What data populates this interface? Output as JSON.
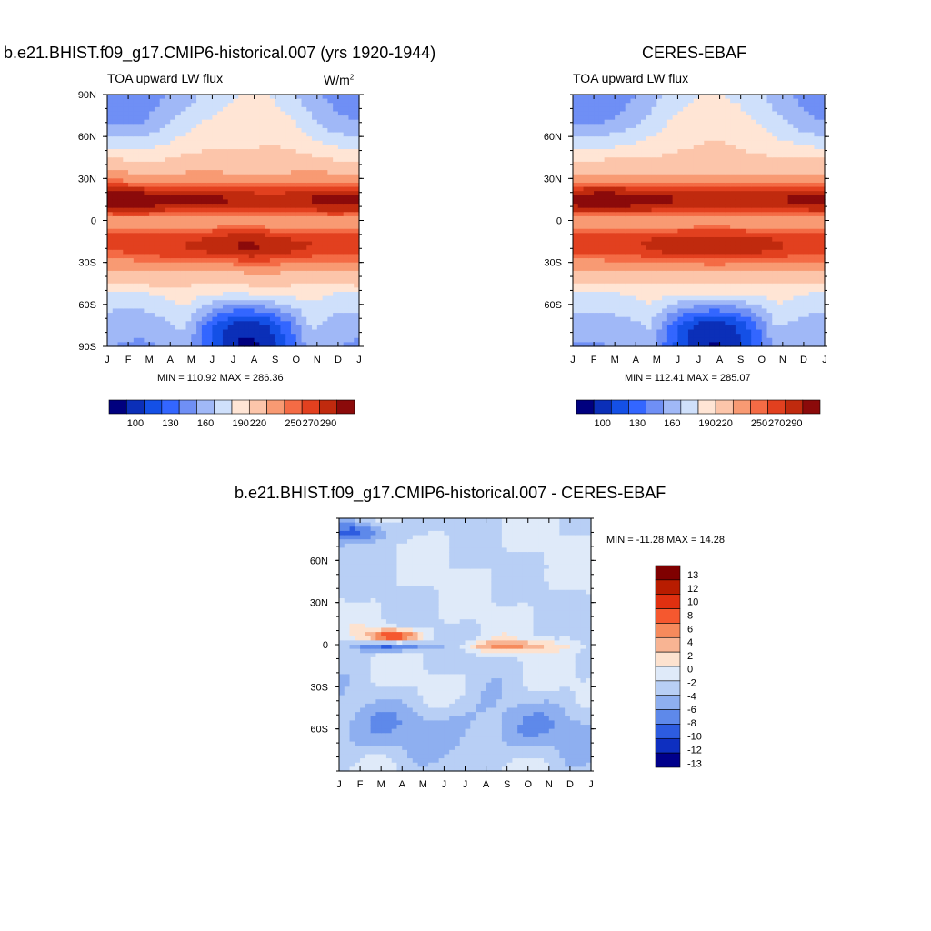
{
  "plots": {
    "left": {
      "title": "b.e21.BHIST.f09_g17.CMIP6-historical.007 (yrs 1920-1944)",
      "subtitle": "TOA upward LW flux",
      "units_base": "W/m",
      "units_exp": "2",
      "minmax": "MIN = 110.92 MAX = 286.36"
    },
    "right": {
      "title": "CERES-EBAF",
      "subtitle": "TOA upward LW flux",
      "minmax": "MIN = 112.41 MAX = 285.07"
    },
    "diff": {
      "title": "b.e21.BHIST.f09_g17.CMIP6-historical.007 - CERES-EBAF",
      "minmax": "MIN = -11.28 MAX =  14.28"
    }
  },
  "chart_data": [
    {
      "type": "heatmap",
      "title": "b.e21.BHIST.f09_g17.CMIP6-historical.007 (yrs 1920-1944)",
      "x_ticks": [
        "J",
        "F",
        "M",
        "A",
        "M",
        "J",
        "J",
        "A",
        "S",
        "O",
        "N",
        "D",
        "J"
      ],
      "y_ticks": [
        "90N",
        "60N",
        "30N",
        "0",
        "30S",
        "60S",
        "90S"
      ],
      "ylim": [
        -90,
        90
      ],
      "colorbar_labels": [
        "100",
        "130",
        "160",
        "190",
        "220",
        "250",
        "270",
        "290"
      ],
      "min": 110.92,
      "max": 286.36
    },
    {
      "type": "heatmap",
      "title": "CERES-EBAF",
      "x_ticks": [
        "J",
        "F",
        "M",
        "A",
        "M",
        "J",
        "J",
        "A",
        "S",
        "O",
        "N",
        "D",
        "J"
      ],
      "y_ticks": [
        "60N",
        "30N",
        "0",
        "30S",
        "60S"
      ],
      "ylim": [
        -90,
        90
      ],
      "colorbar_labels": [
        "100",
        "130",
        "160",
        "190",
        "220",
        "250",
        "270",
        "290"
      ],
      "min": 112.41,
      "max": 285.07
    },
    {
      "type": "heatmap",
      "title": "b.e21.BHIST.f09_g17.CMIP6-historical.007 - CERES-EBAF",
      "x_ticks": [
        "J",
        "F",
        "M",
        "A",
        "M",
        "J",
        "J",
        "A",
        "S",
        "O",
        "N",
        "D",
        "J"
      ],
      "y_ticks": [
        "60N",
        "30N",
        "0",
        "30S",
        "60S"
      ],
      "ylim": [
        -90,
        90
      ],
      "colorbar_labels": [
        "13",
        "12",
        "10",
        "8",
        "6",
        "4",
        "2",
        "0",
        "-2",
        "-4",
        "-6",
        "-8",
        "-10",
        "-12",
        "-13"
      ],
      "min": -11.28,
      "max": 14.28
    }
  ],
  "colors": {
    "abs_scale": [
      "#00007f",
      "#0b2fb8",
      "#1450e6",
      "#3366ff",
      "#6f8ff5",
      "#a0b8f7",
      "#cfe0fb",
      "#ffe5d5",
      "#fcc5aa",
      "#f89a73",
      "#f46b45",
      "#e2401f",
      "#c02a0e",
      "#8b0a0a"
    ],
    "diff_scale": [
      "#7f0000",
      "#b81c00",
      "#e03010",
      "#f5582f",
      "#f68a5c",
      "#f8b493",
      "#fde2cf",
      "#dfeaf9",
      "#b8cff5",
      "#8eaff0",
      "#5e89ea",
      "#2d5ce0",
      "#0e2fc0",
      "#00008b"
    ]
  }
}
